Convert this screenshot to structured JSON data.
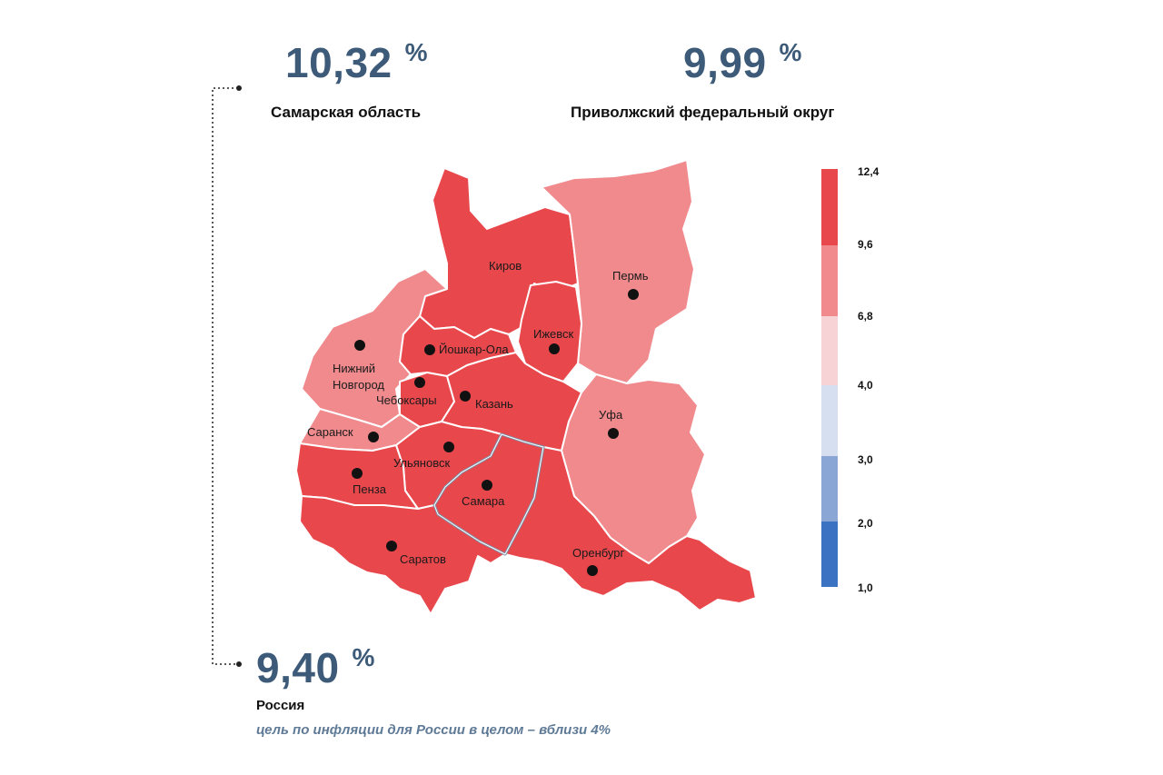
{
  "stats": {
    "samara": {
      "value": "10,32",
      "unit": "%",
      "label": "Самарская область"
    },
    "volga": {
      "value": "9,99",
      "unit": "%",
      "label": "Приволжский федеральный округ"
    },
    "russia": {
      "value": "9,40",
      "unit": "%",
      "label": "Россия",
      "note": "цель по инфляции для России в целом – вблизи 4%"
    }
  },
  "cities": {
    "kirov": "Киров",
    "perm": "Пермь",
    "izhevsk": "Ижевск",
    "yoshkar": "Йошкар-Ола",
    "nnovgorod_1": "Нижний",
    "nnovgorod_2": "Новгород",
    "cheboksary": "Чебоксары",
    "kazan": "Казань",
    "ufa": "Уфа",
    "saransk": "Саранск",
    "ulyanovsk": "Ульяновск",
    "penza": "Пенза",
    "samara": "Самара",
    "saratov": "Саратов",
    "orenburg": "Оренбург"
  },
  "legend": {
    "ticks": [
      "12,4",
      "9,6",
      "6,8",
      "4,0",
      "3,0",
      "2,0",
      "1,0"
    ],
    "colors": [
      "#e8474c",
      "#f08a8d",
      "#f7d3d6",
      "#d6dff0",
      "#8aa6d4",
      "#3b73c2"
    ]
  },
  "colors": {
    "high": "#e8474c",
    "mid": "#f08a8d",
    "border": "#ffffff",
    "highlight_border": "#8a9ab0",
    "text_value": "#3d5a78"
  }
}
